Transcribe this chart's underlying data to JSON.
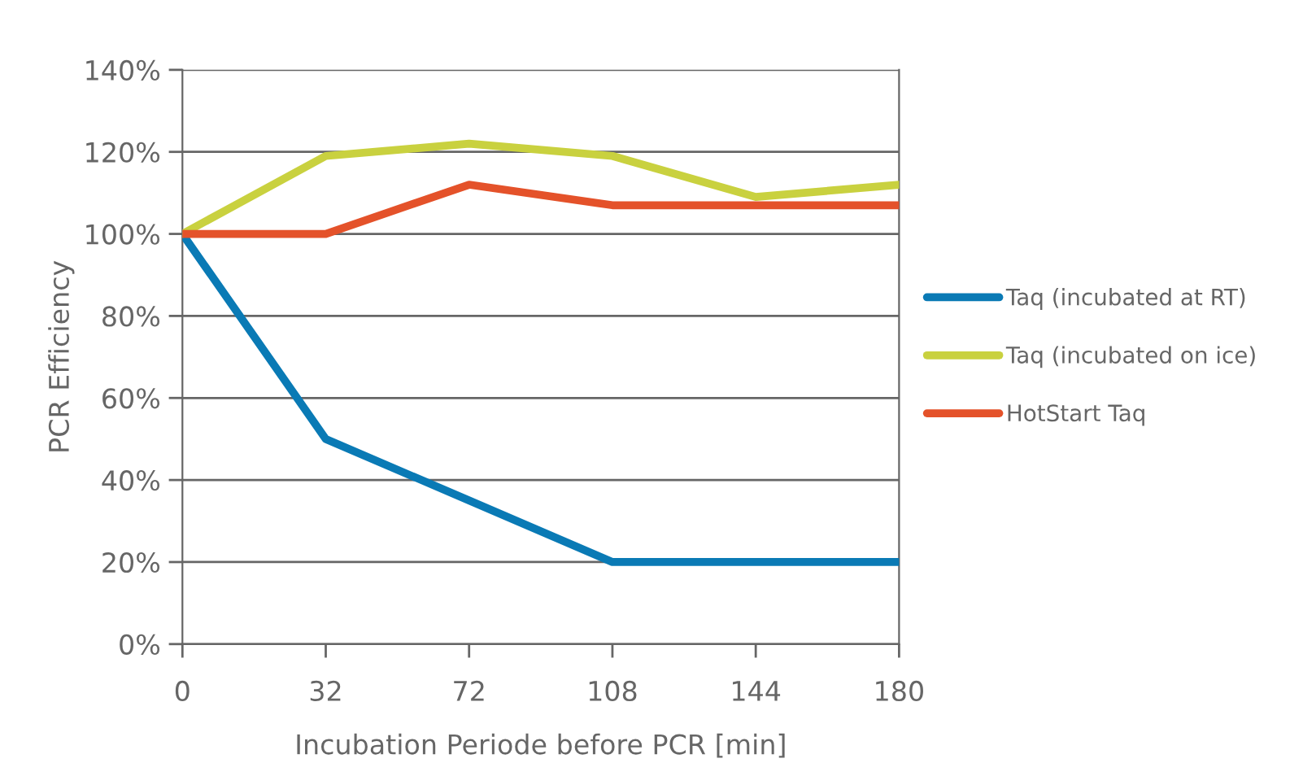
{
  "chart_data": {
    "type": "line",
    "xlabel": "Incubation Periode before PCR [min]",
    "ylabel": "PCR Efficiency",
    "categories": [
      "0",
      "32",
      "72",
      "108",
      "144",
      "180"
    ],
    "series": [
      {
        "name": "Taq (incubated at RT)",
        "color": "#0a7ab5",
        "values": [
          100,
          50,
          35,
          20,
          20,
          20
        ]
      },
      {
        "name": "Taq (incubated on ice)",
        "color": "#c9d13f",
        "values": [
          100,
          119,
          122,
          119,
          109,
          112
        ]
      },
      {
        "name": "HotStart Taq",
        "color": "#e4522a",
        "values": [
          100,
          100,
          112,
          107,
          107,
          107
        ]
      }
    ],
    "ylim": [
      0,
      140
    ],
    "yticks": [
      {
        "value": 0,
        "label": "0%"
      },
      {
        "value": 20,
        "label": "20%"
      },
      {
        "value": 40,
        "label": "40%"
      },
      {
        "value": 60,
        "label": "60%"
      },
      {
        "value": 80,
        "label": "80%"
      },
      {
        "value": 100,
        "label": "100%"
      },
      {
        "value": 120,
        "label": "120%"
      },
      {
        "value": 140,
        "label": "140%"
      }
    ],
    "grid": "y",
    "legend": "right",
    "marker": "none",
    "line_style": "solid"
  }
}
